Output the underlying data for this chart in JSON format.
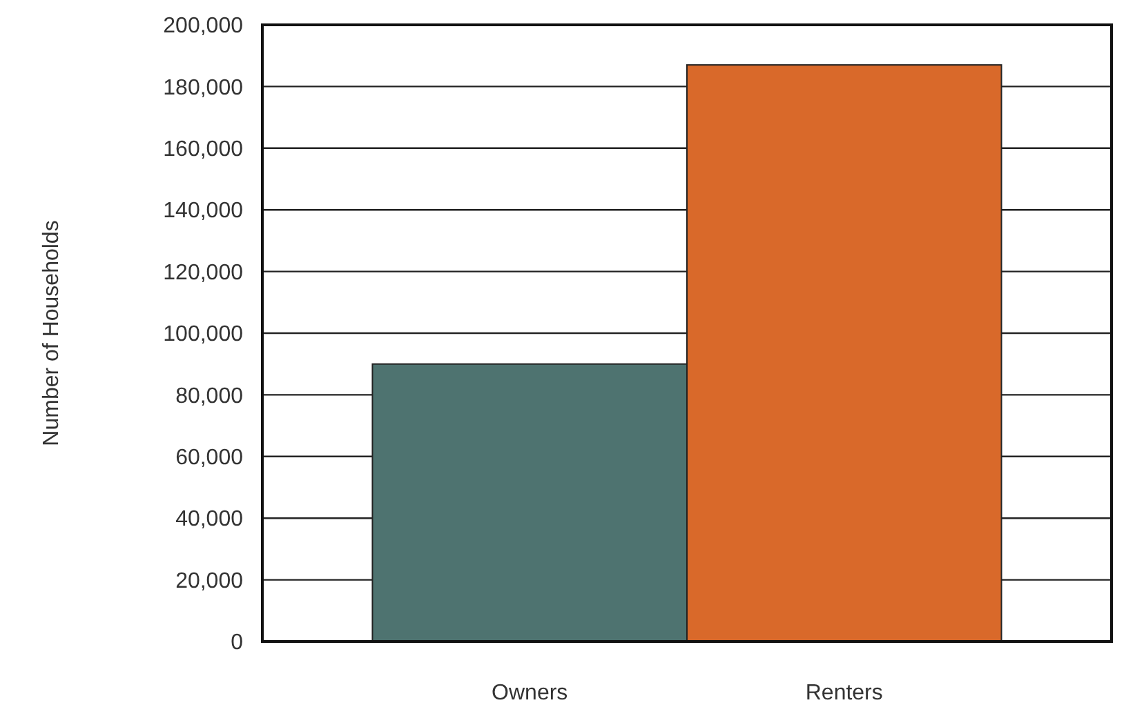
{
  "chart_data": {
    "type": "bar",
    "ylabel": "Number of Households",
    "categories": [
      "Owners",
      "Renters"
    ],
    "values": [
      90000,
      187000
    ],
    "colors": [
      "#4e7370",
      "#d9692a"
    ],
    "ylim": [
      0,
      200000
    ],
    "yticks": [
      {
        "value": 0,
        "label": "0"
      },
      {
        "value": 20000,
        "label": "20,000"
      },
      {
        "value": 40000,
        "label": "40,000"
      },
      {
        "value": 60000,
        "label": "60,000"
      },
      {
        "value": 80000,
        "label": "80,000"
      },
      {
        "value": 100000,
        "label": "100,000"
      },
      {
        "value": 120000,
        "label": "120,000"
      },
      {
        "value": 140000,
        "label": "140,000"
      },
      {
        "value": 160000,
        "label": "160,000"
      },
      {
        "value": 180000,
        "label": "180,000"
      },
      {
        "value": 200000,
        "label": "200,000"
      }
    ],
    "grid": "y"
  }
}
